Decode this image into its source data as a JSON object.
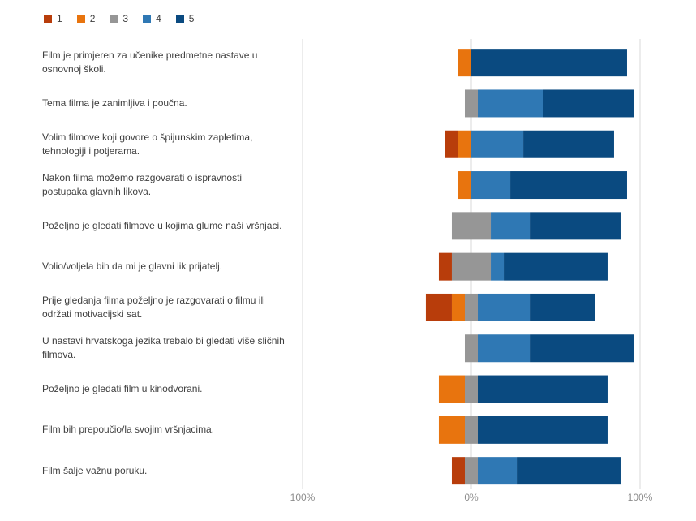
{
  "chart_data": {
    "type": "bar",
    "stacked": "diverging",
    "legend_position": "top-left",
    "legend": [
      "1",
      "2",
      "3",
      "4",
      "5"
    ],
    "colors": [
      "#b83d0b",
      "#e8740e",
      "#969696",
      "#2f78b4",
      "#0a4a80"
    ],
    "categories": [
      "Film je primjeren za učenike predmetne nastave u osnovnoj školi.",
      "Tema filma je zanimljiva i poučna.",
      "Volim filmove koji govore o špijunskim zapletima, tehnologiji i potjerama.",
      "Nakon filma možemo razgovarati  o ispravnosti postupaka glavnih likova.",
      "Poželjno je gledati  filmove u kojima glume naši vršnjaci.",
      "Volio/voljela bih da mi je glavni lik prijatelj.",
      "Prije gledanja filma poželjno je razgovarati o filmu ili održati motivacijski sat.",
      "U nastavi hrvatskoga jezika trebalo bi gledati više sličnih filmova.",
      "Poželjno je gledati film u kinodvorani.",
      "Film bih prepoučio/la svojim vršnjacima.",
      "Film šalje važnu poruku."
    ],
    "series": [
      {
        "name": "1",
        "values": [
          0,
          0,
          7.7,
          0,
          0,
          7.7,
          15.4,
          0,
          0,
          0,
          7.7
        ]
      },
      {
        "name": "2",
        "values": [
          7.7,
          0,
          7.7,
          7.7,
          0,
          0,
          7.7,
          0,
          15.4,
          15.4,
          0
        ]
      },
      {
        "name": "3",
        "values": [
          0,
          7.7,
          0,
          0,
          23.1,
          23.1,
          7.7,
          7.7,
          7.7,
          7.7,
          7.7
        ]
      },
      {
        "name": "4",
        "values": [
          0,
          38.5,
          30.8,
          23.1,
          23.1,
          7.7,
          30.8,
          30.8,
          0,
          0,
          23.1
        ]
      },
      {
        "name": "5",
        "values": [
          92.3,
          53.8,
          53.8,
          69.2,
          53.8,
          61.5,
          38.5,
          61.5,
          76.9,
          76.9,
          61.5
        ]
      }
    ],
    "x_ticks": [
      "100%",
      "0%",
      "100%"
    ],
    "xlim": [
      -100,
      100
    ],
    "grid": "vertical"
  }
}
